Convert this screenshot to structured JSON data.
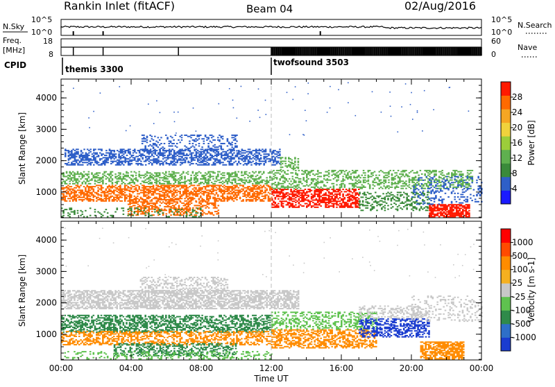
{
  "header": {
    "station": "Rankin Inlet (fitACF)",
    "beam": "Beam 04",
    "date": "02/Aug/2016"
  },
  "nsky": {
    "label": "N.Sky",
    "ticks": [
      "10^5",
      "10^0"
    ],
    "right_label": "N.Search",
    "right_ticks": [
      "10^5",
      "10^0"
    ]
  },
  "freq": {
    "label_top": "Freq.",
    "label_unit": "[MHz]",
    "ticks": [
      "18",
      "8"
    ],
    "right_label": "Nave",
    "right_ticks": [
      "60",
      "0"
    ]
  },
  "cpid": {
    "label": "CPID",
    "segments": [
      {
        "name": "themis 3300",
        "start_hour": 0
      },
      {
        "name": "twofsound 3503",
        "start_hour": 12
      }
    ]
  },
  "chart_data": [
    {
      "type": "heatmap",
      "name": "power",
      "ylabel": "Slant Range [km]",
      "ylim": [
        180,
        4600
      ],
      "yticks": [
        1000,
        2000,
        3000,
        4000
      ],
      "xlim": [
        0,
        24
      ],
      "colorbar": {
        "label": "Power [dB]",
        "range": [
          0,
          32
        ],
        "ticks": [
          "4",
          "8",
          "12",
          "16",
          "20",
          "24",
          "28"
        ],
        "colors": [
          "#1a1aff",
          "#2f5fc8",
          "#3a8a3a",
          "#5fb04f",
          "#9ccd3a",
          "#f0d23c",
          "#f5a623",
          "#ff6a00",
          "#ff1a00"
        ]
      },
      "bands": [
        {
          "t0": 0.2,
          "t1": 12.5,
          "r0": 1850,
          "r1": 2350,
          "color": "#2f5fc8",
          "density": 0.5
        },
        {
          "t0": 4.5,
          "t1": 10,
          "r0": 2300,
          "r1": 2800,
          "color": "#2f5fc8",
          "density": 0.25
        },
        {
          "t0": 0,
          "t1": 12,
          "r0": 1250,
          "r1": 1650,
          "color": "#5fb04f",
          "density": 0.4
        },
        {
          "t0": 0,
          "t1": 12,
          "r0": 700,
          "r1": 1200,
          "color": "#ff6a00",
          "density": 0.55
        },
        {
          "t0": 3.8,
          "t1": 9,
          "r0": 250,
          "r1": 700,
          "color": "#ff6a00",
          "density": 0.4
        },
        {
          "t0": 0,
          "t1": 8,
          "r0": 200,
          "r1": 500,
          "color": "#3a8a3a",
          "density": 0.2
        },
        {
          "t0": 12,
          "t1": 17,
          "r0": 500,
          "r1": 1100,
          "color": "#ff1a00",
          "density": 0.55
        },
        {
          "t0": 12,
          "t1": 23.5,
          "r0": 1100,
          "r1": 1700,
          "color": "#5fb04f",
          "density": 0.35
        },
        {
          "t0": 17,
          "t1": 21,
          "r0": 400,
          "r1": 1000,
          "color": "#3a8a3a",
          "density": 0.3
        },
        {
          "t0": 21,
          "t1": 23.3,
          "r0": 200,
          "r1": 600,
          "color": "#ff1a00",
          "density": 0.75
        },
        {
          "t0": 20,
          "t1": 24,
          "r0": 600,
          "r1": 1500,
          "color": "#2f5fc8",
          "density": 0.2
        },
        {
          "t0": 12.5,
          "t1": 13.5,
          "r0": 1700,
          "r1": 2100,
          "color": "#5fb04f",
          "density": 0.4
        }
      ]
    },
    {
      "type": "heatmap",
      "name": "velocity",
      "ylabel": "Slant Range [km]",
      "ylim": [
        180,
        4600
      ],
      "yticks": [
        1000,
        2000,
        3000,
        4000
      ],
      "xlim": [
        0,
        24
      ],
      "xticks": [
        "00:00",
        "04:00",
        "08:00",
        "12:00",
        "16:00",
        "20:00",
        "00:00"
      ],
      "xlabel": "Time UT",
      "colorbar": {
        "label": "Velocity [m s-1]",
        "ticks": [
          "1000",
          "500",
          "100",
          "25",
          "-25",
          "-100",
          "-500",
          "-1000"
        ],
        "colors": [
          "#1a3ccf",
          "#2e6fc8",
          "#2f8a4a",
          "#5fc24f",
          "#c8c8c8",
          "#f5b020",
          "#ff8c00",
          "#ff4a00",
          "#ff0000"
        ]
      },
      "bands": [
        {
          "t0": 0,
          "t1": 13.5,
          "r0": 1800,
          "r1": 2400,
          "color": "#c8c8c8",
          "density": 0.6
        },
        {
          "t0": 4.5,
          "t1": 9.5,
          "r0": 2300,
          "r1": 2800,
          "color": "#c8c8c8",
          "density": 0.3
        },
        {
          "t0": 0,
          "t1": 12,
          "r0": 1050,
          "r1": 1600,
          "color": "#2f8a4a",
          "density": 0.5
        },
        {
          "t0": 0,
          "t1": 12,
          "r0": 650,
          "r1": 1100,
          "color": "#ff8c00",
          "density": 0.45
        },
        {
          "t0": 3,
          "t1": 10,
          "r0": 300,
          "r1": 700,
          "color": "#2f8a4a",
          "density": 0.4
        },
        {
          "t0": 12,
          "t1": 18,
          "r0": 550,
          "r1": 1150,
          "color": "#ff8c00",
          "density": 0.5
        },
        {
          "t0": 12,
          "t1": 18,
          "r0": 1150,
          "r1": 1700,
          "color": "#5fc24f",
          "density": 0.35
        },
        {
          "t0": 17,
          "t1": 21,
          "r0": 900,
          "r1": 1500,
          "color": "#1a3ccf",
          "density": 0.5
        },
        {
          "t0": 17,
          "t1": 21,
          "r0": 1500,
          "r1": 1900,
          "color": "#c8c8c8",
          "density": 0.3
        },
        {
          "t0": 20.5,
          "t1": 23,
          "r0": 200,
          "r1": 750,
          "color": "#ff8c00",
          "density": 0.75
        },
        {
          "t0": 20,
          "t1": 24,
          "r0": 1400,
          "r1": 2200,
          "color": "#c8c8c8",
          "density": 0.2
        },
        {
          "t0": 0,
          "t1": 12,
          "r0": 200,
          "r1": 450,
          "color": "#5fc24f",
          "density": 0.2
        }
      ]
    }
  ]
}
